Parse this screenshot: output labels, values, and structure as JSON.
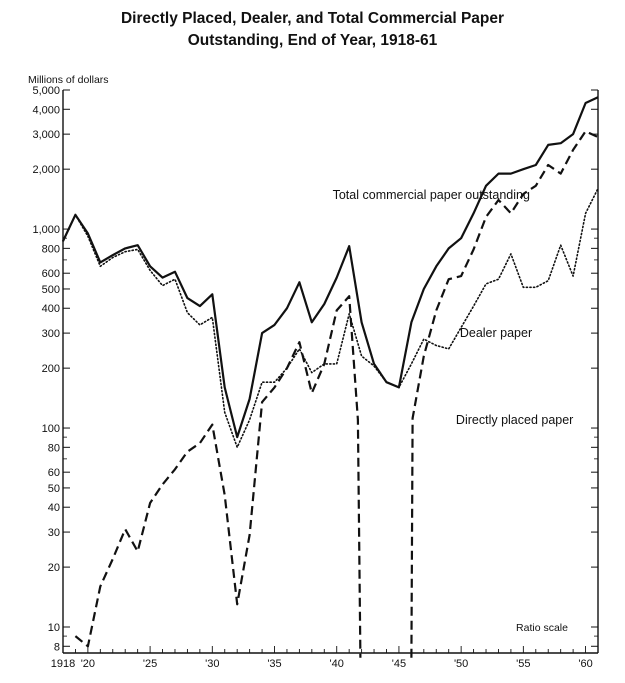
{
  "chart_data": {
    "type": "line",
    "title_lines": [
      "Directly Placed, Dealer, and Total Commercial Paper",
      "Outstanding, End of Year, 1918-61"
    ],
    "ylabel": "Millions of dollars",
    "scale_note": "Ratio scale",
    "y_scale": "log",
    "ylim": [
      7,
      5000
    ],
    "xlim": [
      1918,
      1961
    ],
    "grid": false,
    "y_ticks": [
      {
        "value": 5000,
        "label": "5,000"
      },
      {
        "value": 4000,
        "label": "4,000"
      },
      {
        "value": 3000,
        "label": "3,000"
      },
      {
        "value": 2000,
        "label": "2,000"
      },
      {
        "value": 1000,
        "label": "1,000"
      },
      {
        "value": 800,
        "label": "800"
      },
      {
        "value": 600,
        "label": "600"
      },
      {
        "value": 500,
        "label": "500"
      },
      {
        "value": 400,
        "label": "400"
      },
      {
        "value": 300,
        "label": "300"
      },
      {
        "value": 200,
        "label": "200"
      },
      {
        "value": 100,
        "label": "100"
      },
      {
        "value": 80,
        "label": "80"
      },
      {
        "value": 60,
        "label": "60"
      },
      {
        "value": 50,
        "label": "50"
      },
      {
        "value": 40,
        "label": "40"
      },
      {
        "value": 30,
        "label": "30"
      },
      {
        "value": 20,
        "label": "20"
      },
      {
        "value": 10,
        "label": "10"
      },
      {
        "value": 8,
        "label": "8"
      }
    ],
    "y_minor_ticks": [
      900,
      700,
      90,
      70,
      9
    ],
    "x_ticks": [
      {
        "value": 1918,
        "label": "1918"
      },
      {
        "value": 1920,
        "label": "'20"
      },
      {
        "value": 1925,
        "label": "'25"
      },
      {
        "value": 1930,
        "label": "'30"
      },
      {
        "value": 1935,
        "label": "'35"
      },
      {
        "value": 1940,
        "label": "'40"
      },
      {
        "value": 1945,
        "label": "'45"
      },
      {
        "value": 1950,
        "label": "'50"
      },
      {
        "value": 1955,
        "label": "'55"
      },
      {
        "value": 1960,
        "label": "'60"
      }
    ],
    "series": [
      {
        "label": "Total commercial paper outstanding",
        "style": "solid",
        "points": [
          [
            1918,
            870
          ],
          [
            1919,
            1180
          ],
          [
            1920,
            950
          ],
          [
            1921,
            680
          ],
          [
            1922,
            740
          ],
          [
            1923,
            800
          ],
          [
            1924,
            830
          ],
          [
            1925,
            650
          ],
          [
            1926,
            570
          ],
          [
            1927,
            610
          ],
          [
            1928,
            450
          ],
          [
            1929,
            410
          ],
          [
            1930,
            470
          ],
          [
            1931,
            160
          ],
          [
            1932,
            90
          ],
          [
            1933,
            140
          ],
          [
            1934,
            300
          ],
          [
            1935,
            330
          ],
          [
            1936,
            400
          ],
          [
            1937,
            540
          ],
          [
            1938,
            340
          ],
          [
            1939,
            420
          ],
          [
            1940,
            570
          ],
          [
            1941,
            820
          ],
          [
            1942,
            340
          ],
          [
            1943,
            210
          ],
          [
            1944,
            170
          ],
          [
            1945,
            160
          ],
          [
            1946,
            340
          ],
          [
            1947,
            500
          ],
          [
            1948,
            650
          ],
          [
            1949,
            800
          ],
          [
            1950,
            900
          ],
          [
            1951,
            1200
          ],
          [
            1952,
            1650
          ],
          [
            1953,
            1900
          ],
          [
            1954,
            1900
          ],
          [
            1955,
            2000
          ],
          [
            1956,
            2100
          ],
          [
            1957,
            2650
          ],
          [
            1958,
            2700
          ],
          [
            1959,
            3000
          ],
          [
            1960,
            4300
          ],
          [
            1961,
            4600
          ]
        ]
      },
      {
        "label": "Dealer paper",
        "style": "dotted",
        "points": [
          [
            1918,
            870
          ],
          [
            1919,
            1180
          ],
          [
            1920,
            920
          ],
          [
            1921,
            650
          ],
          [
            1922,
            720
          ],
          [
            1923,
            770
          ],
          [
            1924,
            790
          ],
          [
            1925,
            620
          ],
          [
            1926,
            520
          ],
          [
            1927,
            560
          ],
          [
            1928,
            380
          ],
          [
            1929,
            330
          ],
          [
            1930,
            360
          ],
          [
            1931,
            120
          ],
          [
            1932,
            80
          ],
          [
            1933,
            110
          ],
          [
            1934,
            170
          ],
          [
            1935,
            170
          ],
          [
            1936,
            200
          ],
          [
            1937,
            250
          ],
          [
            1938,
            190
          ],
          [
            1939,
            210
          ],
          [
            1940,
            210
          ],
          [
            1941,
            375
          ],
          [
            1942,
            230
          ],
          [
            1943,
            205
          ],
          [
            1944,
            170
          ],
          [
            1945,
            160
          ],
          [
            1946,
            210
          ],
          [
            1947,
            280
          ],
          [
            1948,
            260
          ],
          [
            1949,
            250
          ],
          [
            1950,
            320
          ],
          [
            1951,
            410
          ],
          [
            1952,
            530
          ],
          [
            1953,
            560
          ],
          [
            1954,
            750
          ],
          [
            1955,
            510
          ],
          [
            1956,
            510
          ],
          [
            1957,
            550
          ],
          [
            1958,
            830
          ],
          [
            1959,
            580
          ],
          [
            1960,
            1200
          ],
          [
            1961,
            1600
          ]
        ]
      },
      {
        "label": "Directly placed paper",
        "style": "dashed",
        "segments": [
          [
            [
              1919,
              9
            ],
            [
              1920,
              8
            ],
            [
              1921,
              16
            ],
            [
              1922,
              22
            ],
            [
              1923,
              31
            ],
            [
              1924,
              24
            ],
            [
              1925,
              42
            ],
            [
              1926,
              52
            ],
            [
              1927,
              62
            ],
            [
              1928,
              76
            ],
            [
              1929,
              84
            ],
            [
              1930,
              104
            ],
            [
              1931,
              46
            ],
            [
              1932,
              13
            ],
            [
              1933,
              29
            ],
            [
              1934,
              135
            ],
            [
              1935,
              160
            ],
            [
              1936,
              200
            ],
            [
              1937,
              270
            ],
            [
              1938,
              150
            ],
            [
              1939,
              210
            ],
            [
              1940,
              390
            ],
            [
              1941,
              460
            ],
            [
              1941.7,
              110
            ],
            [
              1941.9,
              7
            ]
          ],
          [
            [
              1946,
              7
            ],
            [
              1946.1,
              112
            ],
            [
              1947,
              230
            ],
            [
              1948,
              390
            ],
            [
              1949,
              560
            ],
            [
              1950,
              580
            ],
            [
              1951,
              790
            ],
            [
              1952,
              1150
            ],
            [
              1953,
              1400
            ],
            [
              1954,
              1200
            ],
            [
              1955,
              1500
            ],
            [
              1956,
              1650
            ],
            [
              1957,
              2100
            ],
            [
              1958,
              1900
            ],
            [
              1959,
              2500
            ],
            [
              1960,
              3100
            ],
            [
              1961,
              2900
            ]
          ]
        ]
      }
    ],
    "annotations": [
      {
        "text": "Total commercial paper outstanding",
        "x": 1947.6,
        "y": 1480
      },
      {
        "text": "Dealer paper",
        "x": 1952.8,
        "y": 300
      },
      {
        "text": "Directly placed paper",
        "x": 1954.3,
        "y": 110
      },
      {
        "text": "Ratio scale",
        "x": 1956.5,
        "y": 10
      }
    ]
  }
}
